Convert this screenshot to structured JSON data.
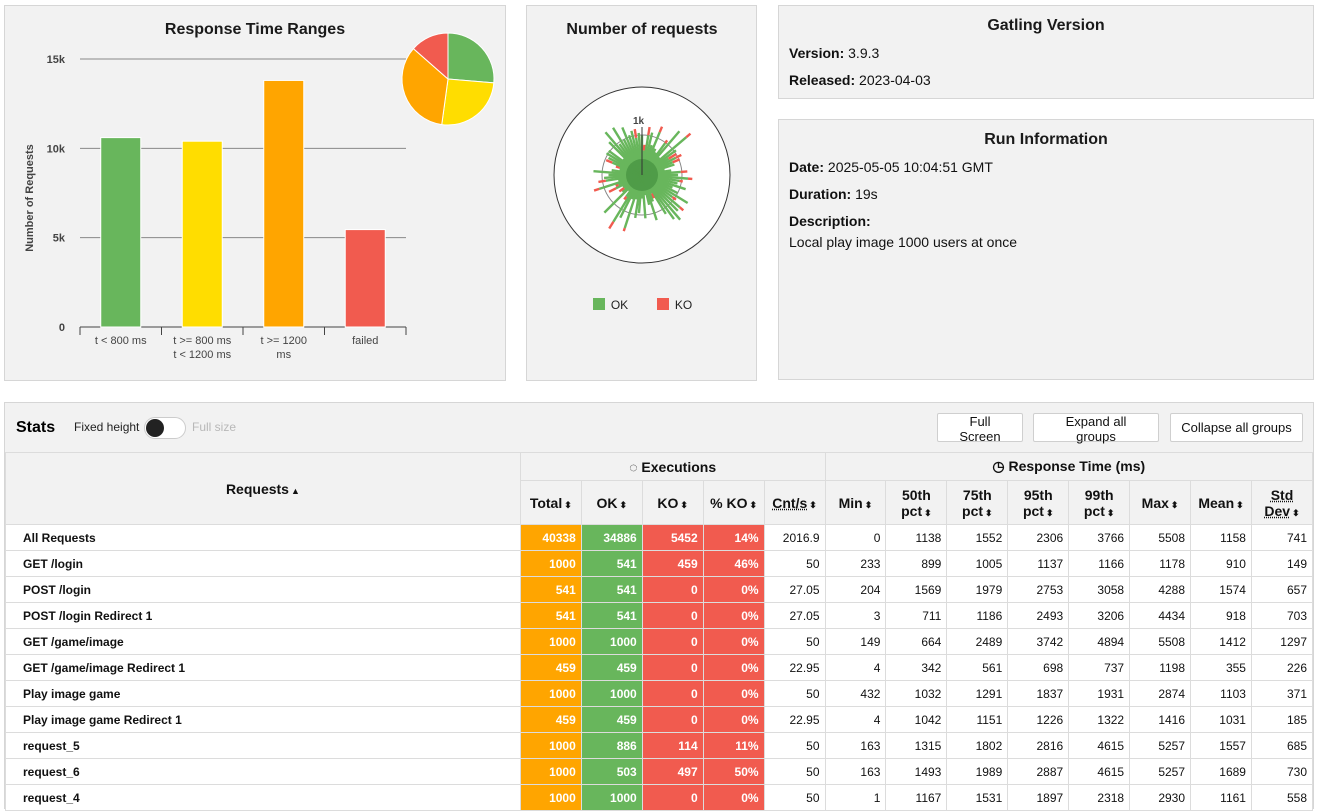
{
  "ranges": {
    "title": "Response Time Ranges"
  },
  "requests_panel": {
    "title": "Number of requests",
    "legend_ok": "OK",
    "legend_ko": "KO",
    "scale_label": "1k"
  },
  "version": {
    "title": "Gatling Version",
    "version_label": "Version:",
    "version_value": "3.9.3",
    "released_label": "Released:",
    "released_value": "2023-04-03"
  },
  "run": {
    "title": "Run Information",
    "date_label": "Date:",
    "date_value": "2025-05-05 10:04:51 GMT",
    "duration_label": "Duration:",
    "duration_value": "19s",
    "description_label": "Description:",
    "description_value": "Local play image 1000 users at once"
  },
  "stats": {
    "title": "Stats",
    "fixed_height": "Fixed height",
    "full_size": "Full size",
    "btn_full_screen": "Full Screen",
    "btn_expand": "Expand all groups",
    "btn_collapse": "Collapse all groups",
    "group_requests": "Requests",
    "group_executions": "Executions",
    "group_response": "Response Time (ms)",
    "columns": [
      "Total",
      "OK",
      "KO",
      "% KO",
      "Cnt/s",
      "Min",
      "50th pct",
      "75th pct",
      "95th pct",
      "99th pct",
      "Max",
      "Mean",
      "Std Dev"
    ],
    "rows": [
      {
        "name": "All Requests",
        "total": "40338",
        "ok": "34886",
        "ko": "5452",
        "pko": "14%",
        "cnt": "2016.9",
        "min": "0",
        "p50": "1138",
        "p75": "1552",
        "p95": "2306",
        "p99": "3766",
        "max": "5508",
        "mean": "1158",
        "std": "741"
      },
      {
        "name": "GET /login",
        "total": "1000",
        "ok": "541",
        "ko": "459",
        "pko": "46%",
        "cnt": "50",
        "min": "233",
        "p50": "899",
        "p75": "1005",
        "p95": "1137",
        "p99": "1166",
        "max": "1178",
        "mean": "910",
        "std": "149"
      },
      {
        "name": "POST /login",
        "total": "541",
        "ok": "541",
        "ko": "0",
        "pko": "0%",
        "cnt": "27.05",
        "min": "204",
        "p50": "1569",
        "p75": "1979",
        "p95": "2753",
        "p99": "3058",
        "max": "4288",
        "mean": "1574",
        "std": "657"
      },
      {
        "name": "POST /login Redirect 1",
        "total": "541",
        "ok": "541",
        "ko": "0",
        "pko": "0%",
        "cnt": "27.05",
        "min": "3",
        "p50": "711",
        "p75": "1186",
        "p95": "2493",
        "p99": "3206",
        "max": "4434",
        "mean": "918",
        "std": "703"
      },
      {
        "name": "GET /game/image",
        "total": "1000",
        "ok": "1000",
        "ko": "0",
        "pko": "0%",
        "cnt": "50",
        "min": "149",
        "p50": "664",
        "p75": "2489",
        "p95": "3742",
        "p99": "4894",
        "max": "5508",
        "mean": "1412",
        "std": "1297"
      },
      {
        "name": "GET /game/image Redirect 1",
        "total": "459",
        "ok": "459",
        "ko": "0",
        "pko": "0%",
        "cnt": "22.95",
        "min": "4",
        "p50": "342",
        "p75": "561",
        "p95": "698",
        "p99": "737",
        "max": "1198",
        "mean": "355",
        "std": "226"
      },
      {
        "name": "Play image game",
        "total": "1000",
        "ok": "1000",
        "ko": "0",
        "pko": "0%",
        "cnt": "50",
        "min": "432",
        "p50": "1032",
        "p75": "1291",
        "p95": "1837",
        "p99": "1931",
        "max": "2874",
        "mean": "1103",
        "std": "371"
      },
      {
        "name": "Play image game Redirect 1",
        "total": "459",
        "ok": "459",
        "ko": "0",
        "pko": "0%",
        "cnt": "22.95",
        "min": "4",
        "p50": "1042",
        "p75": "1151",
        "p95": "1226",
        "p99": "1322",
        "max": "1416",
        "mean": "1031",
        "std": "185"
      },
      {
        "name": "request_5",
        "total": "1000",
        "ok": "886",
        "ko": "114",
        "pko": "11%",
        "cnt": "50",
        "min": "163",
        "p50": "1315",
        "p75": "1802",
        "p95": "2816",
        "p99": "4615",
        "max": "5257",
        "mean": "1557",
        "std": "685"
      },
      {
        "name": "request_6",
        "total": "1000",
        "ok": "503",
        "ko": "497",
        "pko": "50%",
        "cnt": "50",
        "min": "163",
        "p50": "1493",
        "p75": "1989",
        "p95": "2887",
        "p99": "4615",
        "max": "5257",
        "mean": "1689",
        "std": "730"
      },
      {
        "name": "request_4",
        "total": "1000",
        "ok": "1000",
        "ko": "0",
        "pko": "0%",
        "cnt": "50",
        "min": "1",
        "p50": "1167",
        "p75": "1531",
        "p95": "1897",
        "p99": "2318",
        "max": "2930",
        "mean": "1161",
        "std": "558"
      }
    ]
  },
  "colors": {
    "green": "#68b65c",
    "yellow": "#ffdd00",
    "orange": "#ffa500",
    "red": "#f15b4f"
  },
  "chart_data": [
    {
      "type": "bar",
      "title": "Response Time Ranges",
      "ylabel": "Number of Requests",
      "xlabel": "",
      "ylim": [
        0,
        15000
      ],
      "yticks": [
        0,
        5000,
        10000,
        15000
      ],
      "ytick_labels": [
        "0",
        "5k",
        "10k",
        "15k"
      ],
      "categories": [
        "t < 800 ms",
        "t >= 800 ms t < 1200 ms",
        "t >= 1200 ms",
        "failed"
      ],
      "category_lines": [
        [
          "t < 800 ms"
        ],
        [
          "t >= 800 ms",
          "t < 1200 ms"
        ],
        [
          "t >= 1200",
          "ms"
        ],
        [
          "failed"
        ]
      ],
      "values": [
        10600,
        10400,
        13800,
        5452
      ],
      "colors": [
        "#68b65c",
        "#ffdd00",
        "#ffa500",
        "#f15b4f"
      ],
      "pie": {
        "labels": [
          "t < 800 ms",
          "t >= 800 ms t < 1200 ms",
          "t >= 1200 ms",
          "failed"
        ],
        "values": [
          10600,
          10400,
          13800,
          5452
        ]
      }
    },
    {
      "type": "pie",
      "title": "Number of requests",
      "series": [
        {
          "name": "OK",
          "color": "#68b65c",
          "values": [
            34886
          ]
        },
        {
          "name": "KO",
          "color": "#f15b4f",
          "values": [
            5452
          ]
        }
      ]
    }
  ]
}
